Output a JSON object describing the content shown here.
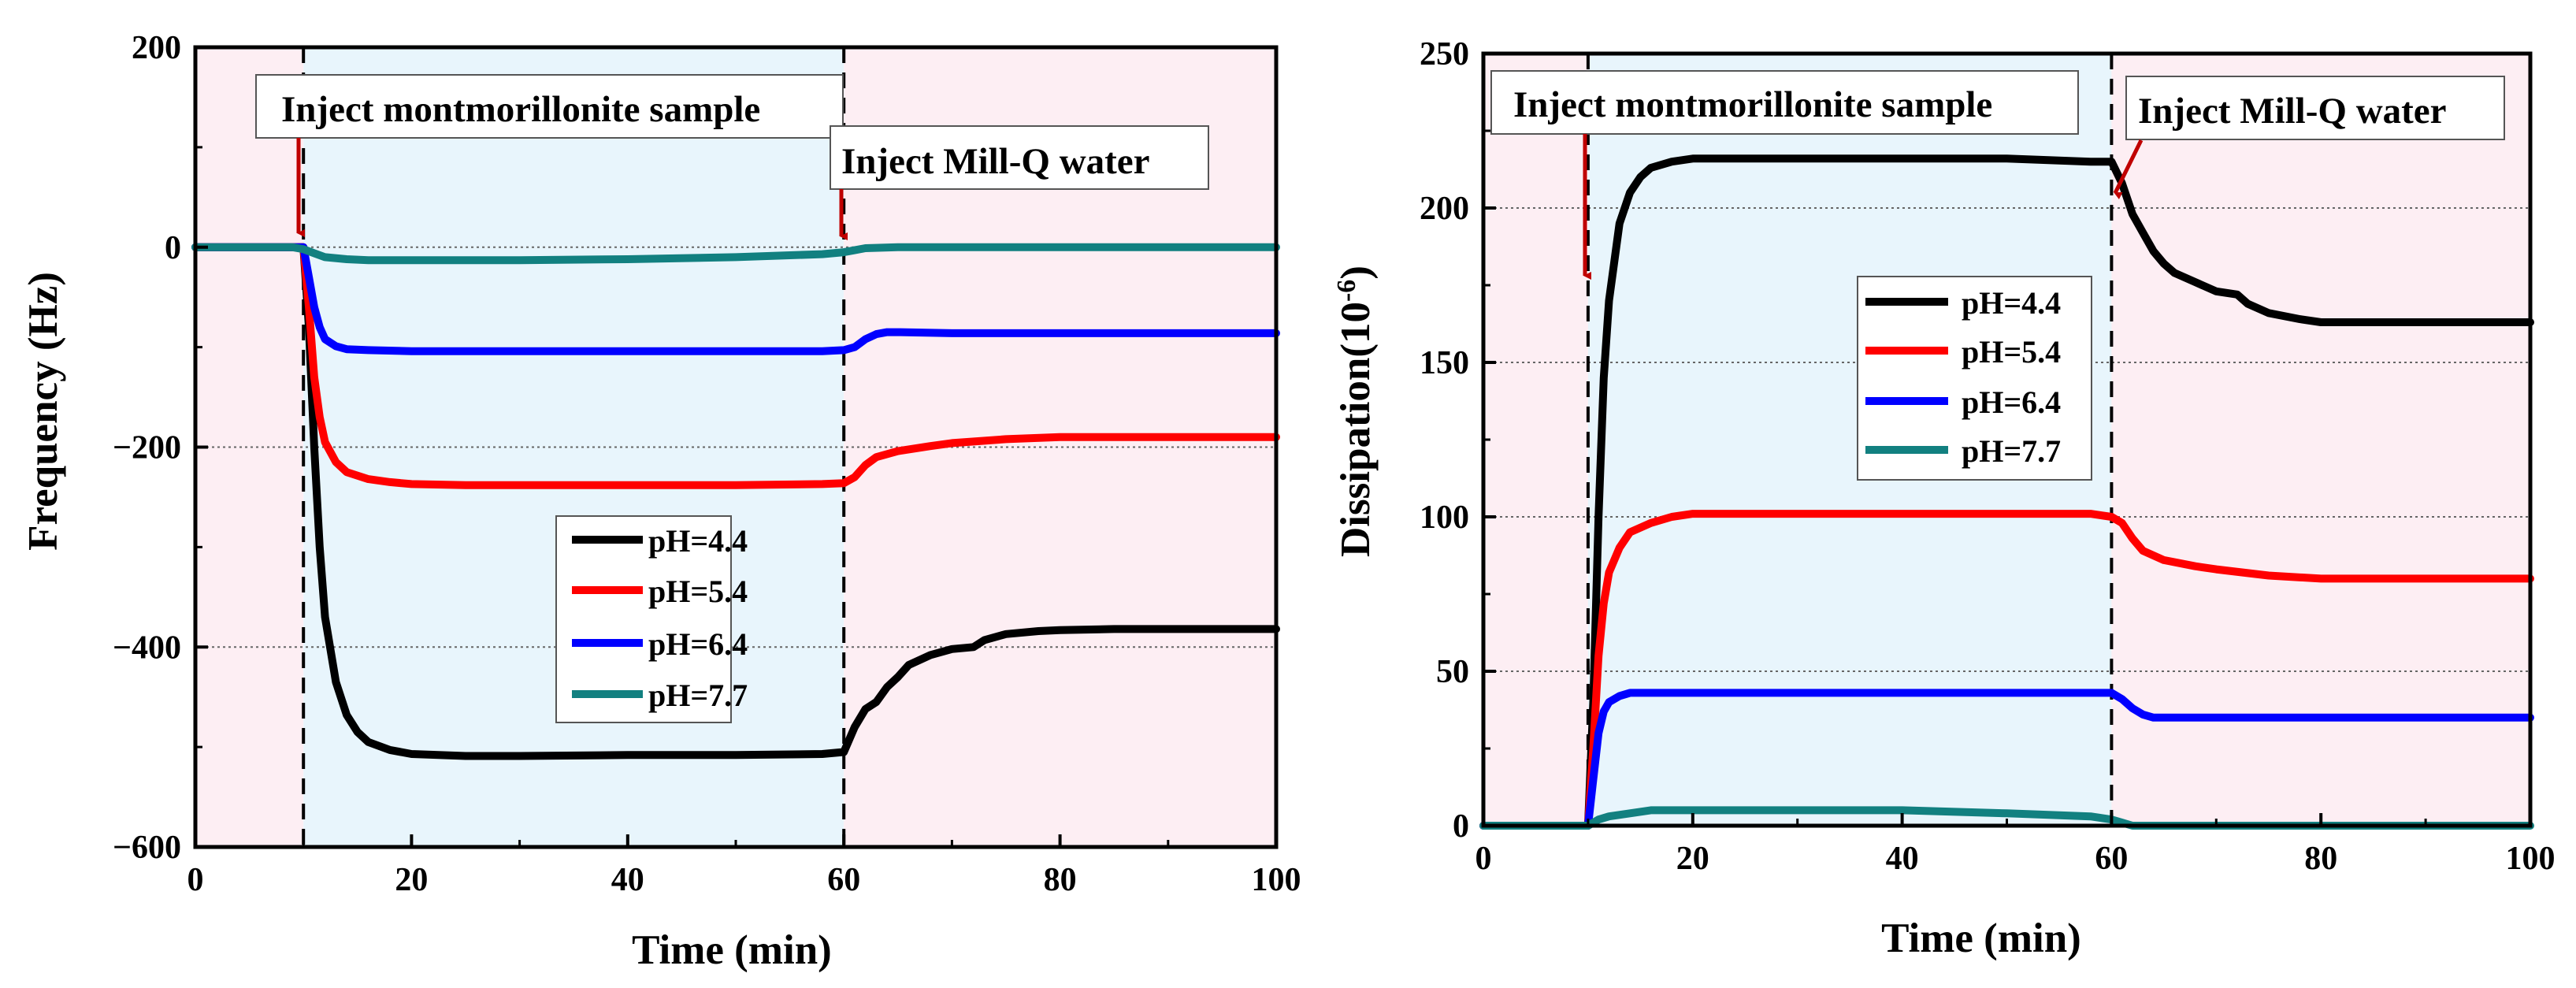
{
  "chart_data": [
    {
      "type": "line",
      "panel": "left",
      "xlabel": "Time (min)",
      "ylabel": "Frequency (Hz)",
      "xlim": [
        0,
        100
      ],
      "ylim": [
        -600,
        200
      ],
      "xticks": [
        0,
        20,
        40,
        60,
        80,
        100
      ],
      "yticks": [
        -600,
        -400,
        -200,
        0,
        200
      ],
      "xtick_labels": [
        "0",
        "20",
        "40",
        "60",
        "80",
        "100"
      ],
      "ytick_labels": [
        "−600",
        "−400",
        "−200",
        "0",
        "200"
      ],
      "shaded_regions": [
        {
          "from": 0,
          "to": 10,
          "color": "#fdeef3"
        },
        {
          "from": 10,
          "to": 60,
          "color": "#e8f5fc"
        },
        {
          "from": 60,
          "to": 100,
          "color": "#fdeef3"
        }
      ],
      "vlines": [
        10,
        60
      ],
      "annotations": [
        {
          "text": "Inject montmorillonite sample",
          "arrow_x": 10,
          "arrow_y": 0
        },
        {
          "text": "Inject Mill-Q water",
          "arrow_x": 60,
          "arrow_y": -2
        }
      ],
      "legend_position": "center-right",
      "series": [
        {
          "name": "pH=4.4",
          "color": "#000000",
          "x": [
            0,
            9,
            10,
            10.5,
            11,
            11.5,
            12,
            13,
            14,
            15,
            16,
            18,
            20,
            25,
            30,
            40,
            50,
            58,
            60,
            61,
            62,
            63,
            64,
            65,
            66,
            68,
            70,
            72,
            73,
            75,
            78,
            80,
            85,
            90,
            100
          ],
          "y": [
            0,
            0,
            0,
            -80,
            -200,
            -300,
            -370,
            -435,
            -468,
            -485,
            -495,
            -503,
            -507,
            -509,
            -509,
            -508,
            -508,
            -507,
            -505,
            -480,
            -462,
            -455,
            -440,
            -430,
            -418,
            -408,
            -402,
            -400,
            -393,
            -387,
            -384,
            -383,
            -382,
            -382,
            -382
          ]
        },
        {
          "name": "pH=5.4",
          "color": "#ff0000",
          "x": [
            0,
            9,
            10,
            10.5,
            11,
            11.5,
            12,
            13,
            14,
            16,
            18,
            20,
            25,
            30,
            40,
            50,
            58,
            60,
            61,
            62,
            63,
            65,
            68,
            70,
            75,
            80,
            90,
            100
          ],
          "y": [
            0,
            0,
            0,
            -60,
            -130,
            -170,
            -195,
            -215,
            -225,
            -232,
            -235,
            -237,
            -238,
            -238,
            -238,
            -238,
            -237,
            -236,
            -230,
            -218,
            -210,
            -204,
            -199,
            -196,
            -192,
            -190,
            -190,
            -190
          ]
        },
        {
          "name": "pH=6.4",
          "color": "#0000ff",
          "x": [
            0,
            9,
            10,
            10.5,
            11,
            11.5,
            12,
            13,
            14,
            16,
            20,
            30,
            40,
            50,
            58,
            60,
            61,
            62,
            63,
            64,
            65,
            70,
            80,
            90,
            100
          ],
          "y": [
            0,
            0,
            0,
            -30,
            -60,
            -80,
            -92,
            -99,
            -102,
            -103,
            -104,
            -104,
            -104,
            -104,
            -104,
            -103,
            -100,
            -92,
            -87,
            -85,
            -85,
            -86,
            -86,
            -86,
            -86
          ]
        },
        {
          "name": "pH=7.7",
          "color": "#128080",
          "x": [
            0,
            9,
            10,
            11,
            12,
            14,
            16,
            20,
            25,
            30,
            40,
            50,
            58,
            60,
            61,
            62,
            65,
            70,
            80,
            90,
            100
          ],
          "y": [
            0,
            0,
            -2,
            -6,
            -10,
            -12,
            -13,
            -13,
            -13,
            -13,
            -12,
            -10,
            -7,
            -5,
            -3,
            -1,
            0,
            0,
            0,
            0,
            0
          ]
        }
      ]
    },
    {
      "type": "line",
      "panel": "right",
      "xlabel": "Time (min)",
      "ylabel": "Dissipation(10",
      "ylabel_sup": "-6",
      "ylabel_close": ")",
      "xlim": [
        0,
        100
      ],
      "ylim": [
        0,
        250
      ],
      "xticks": [
        0,
        20,
        40,
        60,
        80,
        100
      ],
      "yticks": [
        0,
        50,
        100,
        150,
        200,
        250
      ],
      "xtick_labels": [
        "0",
        "20",
        "40",
        "60",
        "80",
        "100"
      ],
      "ytick_labels": [
        "0",
        "50",
        "100",
        "150",
        "200",
        "250"
      ],
      "shaded_regions": [
        {
          "from": 0,
          "to": 10,
          "color": "#fdeef3"
        },
        {
          "from": 10,
          "to": 60,
          "color": "#e8f5fc"
        },
        {
          "from": 60,
          "to": 100,
          "color": "#fdeef3"
        }
      ],
      "vlines": [
        10,
        60
      ],
      "annotations": [
        {
          "text": "Inject montmorillonite sample",
          "arrow_x": 10,
          "arrow_y": 175
        },
        {
          "text": "Inject Mill-Q water",
          "arrow_x": 60,
          "arrow_y": 205
        }
      ],
      "legend_position": "center",
      "series": [
        {
          "name": "pH=4.4",
          "color": "#000000",
          "x": [
            0,
            9,
            10,
            10.5,
            11,
            11.5,
            12,
            13,
            14,
            15,
            16,
            18,
            20,
            25,
            30,
            40,
            50,
            58,
            60,
            61,
            62,
            63,
            64,
            65,
            66,
            68,
            70,
            72,
            73,
            75,
            78,
            80,
            85,
            90,
            100
          ],
          "y": [
            0,
            0,
            0,
            40,
            100,
            145,
            170,
            195,
            205,
            210,
            213,
            215,
            216,
            216,
            216,
            216,
            216,
            215,
            215,
            208,
            198,
            192,
            186,
            182,
            179,
            176,
            173,
            172,
            169,
            166,
            164,
            163,
            163,
            163,
            163
          ]
        },
        {
          "name": "pH=5.4",
          "color": "#ff0000",
          "x": [
            0,
            9,
            10,
            10.5,
            11,
            11.5,
            12,
            13,
            14,
            16,
            18,
            20,
            25,
            30,
            40,
            50,
            58,
            60,
            61,
            62,
            63,
            65,
            68,
            70,
            75,
            80,
            90,
            100
          ],
          "y": [
            0,
            0,
            0,
            25,
            55,
            72,
            82,
            90,
            95,
            98,
            100,
            101,
            101,
            101,
            101,
            101,
            101,
            100,
            98,
            93,
            89,
            86,
            84,
            83,
            81,
            80,
            80,
            80
          ]
        },
        {
          "name": "pH=6.4",
          "color": "#0000ff",
          "x": [
            0,
            9,
            10,
            10.5,
            11,
            11.5,
            12,
            13,
            14,
            16,
            20,
            30,
            40,
            50,
            58,
            60,
            61,
            62,
            63,
            64,
            65,
            70,
            80,
            90,
            100
          ],
          "y": [
            0,
            0,
            0,
            15,
            30,
            37,
            40,
            42,
            43,
            43,
            43,
            43,
            43,
            43,
            43,
            43,
            41,
            38,
            36,
            35,
            35,
            35,
            35,
            35,
            35
          ]
        },
        {
          "name": "pH=7.7",
          "color": "#128080",
          "x": [
            0,
            9,
            10,
            11,
            12,
            14,
            16,
            20,
            25,
            30,
            40,
            50,
            58,
            60,
            61,
            62,
            65,
            70,
            80,
            90,
            100
          ],
          "y": [
            0,
            0,
            0,
            2,
            3,
            4,
            5,
            5,
            5,
            5,
            5,
            4,
            3,
            2,
            1,
            0,
            0,
            0,
            0,
            0,
            0
          ]
        }
      ]
    }
  ]
}
